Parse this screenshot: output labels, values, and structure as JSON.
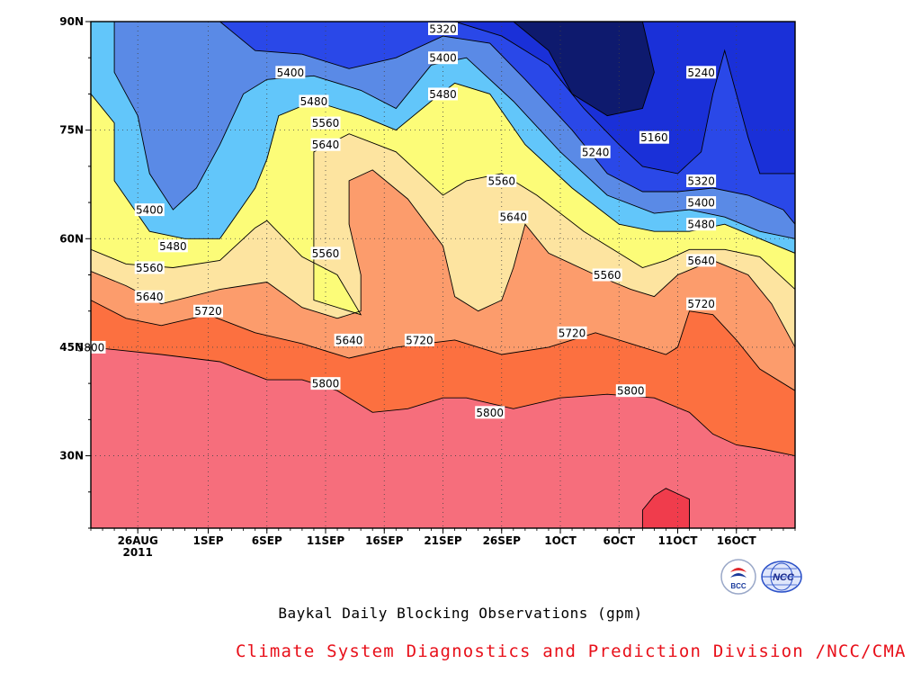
{
  "chart_data": {
    "type": "heatmap",
    "subtype": "filled-contour (Hovmoller)",
    "title": "Baykal Daily Blocking Observations (gpm)",
    "xlabel": "",
    "ylabel": "",
    "x_range": [
      "2011-08-22",
      "2011-10-21"
    ],
    "y_range": [
      20,
      90
    ],
    "x_ticks": [
      {
        "date": "2011-08-26",
        "label": "26AUG",
        "sublabel": "2011"
      },
      {
        "date": "2011-09-01",
        "label": "1SEP"
      },
      {
        "date": "2011-09-06",
        "label": "6SEP"
      },
      {
        "date": "2011-09-11",
        "label": "11SEP"
      },
      {
        "date": "2011-09-16",
        "label": "16SEP"
      },
      {
        "date": "2011-09-21",
        "label": "21SEP"
      },
      {
        "date": "2011-09-26",
        "label": "26SEP"
      },
      {
        "date": "2011-10-01",
        "label": "1OCT"
      },
      {
        "date": "2011-10-06",
        "label": "6OCT"
      },
      {
        "date": "2011-10-11",
        "label": "11OCT"
      },
      {
        "date": "2011-10-16",
        "label": "16OCT"
      }
    ],
    "y_ticks": [
      {
        "value": 30,
        "label": "30N"
      },
      {
        "value": 45,
        "label": "45N"
      },
      {
        "value": 60,
        "label": "60N"
      },
      {
        "value": 75,
        "label": "75N"
      },
      {
        "value": 90,
        "label": "90N"
      }
    ],
    "grid": "dotted",
    "contour_levels": [
      5160,
      5240,
      5320,
      5400,
      5480,
      5560,
      5640,
      5720,
      5800,
      5880
    ],
    "fill_colors": [
      "#0e1a6e",
      "#1a30d8",
      "#2a48e8",
      "#5a8ae6",
      "#62c6fa",
      "#fcfc78",
      "#fde4a0",
      "#fc9c6c",
      "#fc7040",
      "#f66e7c",
      "#f03c4c"
    ],
    "contour_labels": [
      {
        "text": "5320",
        "date": "2011-09-21",
        "lat": 89
      },
      {
        "text": "5400",
        "date": "2011-09-08",
        "lat": 83
      },
      {
        "text": "5400",
        "date": "2011-09-21",
        "lat": 85
      },
      {
        "text": "5480",
        "date": "2011-09-10",
        "lat": 79
      },
      {
        "text": "5480",
        "date": "2011-09-21",
        "lat": 80
      },
      {
        "text": "5560",
        "date": "2011-09-11",
        "lat": 76
      },
      {
        "text": "5640",
        "date": "2011-09-11",
        "lat": 73
      },
      {
        "text": "5400",
        "date": "2011-08-27",
        "lat": 64
      },
      {
        "text": "5480",
        "date": "2011-08-29",
        "lat": 59
      },
      {
        "text": "5560",
        "date": "2011-08-27",
        "lat": 56
      },
      {
        "text": "5560",
        "date": "2011-09-11",
        "lat": 58
      },
      {
        "text": "5640",
        "date": "2011-08-27",
        "lat": 52
      },
      {
        "text": "5720",
        "date": "2011-09-01",
        "lat": 50
      },
      {
        "text": "5640",
        "date": "2011-09-13",
        "lat": 46
      },
      {
        "text": "5720",
        "date": "2011-09-19",
        "lat": 46
      },
      {
        "text": "5800",
        "date": "2011-08-22",
        "lat": 45
      },
      {
        "text": "5800",
        "date": "2011-09-11",
        "lat": 40
      },
      {
        "text": "5800",
        "date": "2011-09-25",
        "lat": 36
      },
      {
        "text": "5560",
        "date": "2011-09-26",
        "lat": 68
      },
      {
        "text": "5640",
        "date": "2011-09-27",
        "lat": 63
      },
      {
        "text": "5240",
        "date": "2011-10-04",
        "lat": 72
      },
      {
        "text": "5160",
        "date": "2011-10-09",
        "lat": 74
      },
      {
        "text": "5240",
        "date": "2011-10-13",
        "lat": 83
      },
      {
        "text": "5320",
        "date": "2011-10-13",
        "lat": 68
      },
      {
        "text": "5400",
        "date": "2011-10-13",
        "lat": 65
      },
      {
        "text": "5480",
        "date": "2011-10-13",
        "lat": 62
      },
      {
        "text": "5640",
        "date": "2011-10-13",
        "lat": 57
      },
      {
        "text": "5720",
        "date": "2011-10-13",
        "lat": 51
      },
      {
        "text": "5560",
        "date": "2011-10-05",
        "lat": 55
      },
      {
        "text": "5720",
        "date": "2011-10-02",
        "lat": 47
      },
      {
        "text": "5800",
        "date": "2011-10-07",
        "lat": 39
      }
    ],
    "contours": [
      {
        "level": 5880,
        "closed": true,
        "points": [
          [
            "2011-10-08",
            20
          ],
          [
            "2011-10-08",
            22.5
          ],
          [
            "2011-10-09",
            24.5
          ],
          [
            "2011-10-10",
            25.5
          ],
          [
            "2011-10-12",
            24
          ],
          [
            "2011-10-12",
            22
          ],
          [
            "2011-10-12",
            20
          ]
        ]
      },
      {
        "level": 5800,
        "points": [
          [
            "2011-08-22",
            45
          ],
          [
            "2011-08-28",
            44
          ],
          [
            "2011-09-02",
            43
          ],
          [
            "2011-09-06",
            40.5
          ],
          [
            "2011-09-09",
            40.5
          ],
          [
            "2011-09-12",
            39
          ],
          [
            "2011-09-15",
            36
          ],
          [
            "2011-09-18",
            36.5
          ],
          [
            "2011-09-21",
            38
          ],
          [
            "2011-09-23",
            38
          ],
          [
            "2011-09-27",
            36.5
          ],
          [
            "2011-10-01",
            38
          ],
          [
            "2011-10-05",
            38.5
          ],
          [
            "2011-10-09",
            38
          ],
          [
            "2011-10-12",
            36
          ],
          [
            "2011-10-14",
            33
          ],
          [
            "2011-10-16",
            31.5
          ],
          [
            "2011-10-18",
            31
          ],
          [
            "2011-10-21",
            30
          ]
        ]
      },
      {
        "level": 5720,
        "points": [
          [
            "2011-08-22",
            51.5
          ],
          [
            "2011-08-25",
            49
          ],
          [
            "2011-08-28",
            48
          ],
          [
            "2011-09-01",
            49.5
          ],
          [
            "2011-09-05",
            47
          ],
          [
            "2011-09-09",
            45.5
          ],
          [
            "2011-09-13",
            43.5
          ],
          [
            "2011-09-17",
            45
          ],
          [
            "2011-09-22",
            46
          ],
          [
            "2011-09-26",
            44
          ],
          [
            "2011-09-30",
            45
          ],
          [
            "2011-10-04",
            47
          ],
          [
            "2011-10-07",
            45.5
          ],
          [
            "2011-10-10",
            44
          ],
          [
            "2011-10-11",
            45
          ],
          [
            "2011-10-12",
            50
          ],
          [
            "2011-10-14",
            49.5
          ],
          [
            "2011-10-16",
            46
          ],
          [
            "2011-10-18",
            42
          ],
          [
            "2011-10-21",
            39
          ]
        ]
      },
      {
        "level": 5640,
        "points": [
          [
            "2011-08-22",
            55.5
          ],
          [
            "2011-08-25",
            53.5
          ],
          [
            "2011-08-28",
            51
          ],
          [
            "2011-09-02",
            53
          ],
          [
            "2011-09-06",
            54
          ],
          [
            "2011-09-09",
            50.5
          ],
          [
            "2011-09-12",
            49
          ],
          [
            "2011-09-14",
            50
          ],
          [
            "2011-09-14",
            55
          ],
          [
            "2011-09-13",
            62
          ],
          [
            "2011-09-13",
            68
          ],
          [
            "2011-09-15",
            69.5
          ],
          [
            "2011-09-18",
            65.5
          ],
          [
            "2011-09-21",
            59
          ],
          [
            "2011-09-22",
            52
          ],
          [
            "2011-09-24",
            50
          ],
          [
            "2011-09-26",
            51.5
          ],
          [
            "2011-09-27",
            56
          ],
          [
            "2011-09-28",
            62
          ],
          [
            "2011-09-30",
            58
          ],
          [
            "2011-10-04",
            55
          ],
          [
            "2011-10-07",
            53
          ],
          [
            "2011-10-09",
            52
          ],
          [
            "2011-10-11",
            55
          ],
          [
            "2011-10-14",
            57
          ],
          [
            "2011-10-17",
            55
          ],
          [
            "2011-10-19",
            51
          ],
          [
            "2011-10-21",
            45
          ]
        ]
      },
      {
        "level": 5560,
        "points": [
          [
            "2011-08-22",
            58.5
          ],
          [
            "2011-08-25",
            56.5
          ],
          [
            "2011-08-29",
            56
          ],
          [
            "2011-09-02",
            57
          ],
          [
            "2011-09-05",
            61.5
          ],
          [
            "2011-09-06",
            62.5
          ],
          [
            "2011-09-09",
            57.5
          ],
          [
            "2011-09-12",
            55
          ],
          [
            "2011-09-14",
            49.5
          ],
          [
            "2011-09-10",
            51.5
          ],
          [
            "2011-09-10",
            62
          ],
          [
            "2011-09-10",
            72
          ],
          [
            "2011-09-13",
            74.5
          ],
          [
            "2011-09-17",
            72
          ],
          [
            "2011-09-21",
            66
          ],
          [
            "2011-09-23",
            68
          ],
          [
            "2011-09-26",
            69
          ],
          [
            "2011-09-29",
            66
          ],
          [
            "2011-10-03",
            61
          ],
          [
            "2011-10-06",
            58
          ],
          [
            "2011-10-08",
            56
          ],
          [
            "2011-10-10",
            57
          ],
          [
            "2011-10-12",
            58.5
          ],
          [
            "2011-10-15",
            58.5
          ],
          [
            "2011-10-18",
            57.5
          ],
          [
            "2011-10-21",
            53
          ]
        ]
      },
      {
        "level": 5480,
        "points": [
          [
            "2011-08-22",
            90
          ],
          [
            "2011-08-22",
            80
          ],
          [
            "2011-08-24",
            76
          ],
          [
            "2011-08-24",
            68
          ],
          [
            "2011-08-27",
            61
          ],
          [
            "2011-08-30",
            60
          ],
          [
            "2011-09-02",
            60
          ],
          [
            "2011-09-05",
            67
          ],
          [
            "2011-09-06",
            71
          ],
          [
            "2011-09-07",
            77
          ],
          [
            "2011-09-10",
            79
          ],
          [
            "2011-09-14",
            77
          ],
          [
            "2011-09-17",
            75
          ],
          [
            "2011-09-20",
            79
          ],
          [
            "2011-09-22",
            81.5
          ],
          [
            "2011-09-25",
            80
          ],
          [
            "2011-09-28",
            73
          ],
          [
            "2011-10-02",
            67
          ],
          [
            "2011-10-06",
            62
          ],
          [
            "2011-10-09",
            61
          ],
          [
            "2011-10-12",
            61
          ],
          [
            "2011-10-15",
            62
          ],
          [
            "2011-10-18",
            60
          ],
          [
            "2011-10-21",
            58
          ]
        ]
      },
      {
        "level": 5400,
        "points": [
          [
            "2011-08-24",
            90
          ],
          [
            "2011-08-24",
            83
          ],
          [
            "2011-08-26",
            77
          ],
          [
            "2011-08-27",
            69
          ],
          [
            "2011-08-29",
            64
          ],
          [
            "2011-08-31",
            67
          ],
          [
            "2011-09-02",
            73
          ],
          [
            "2011-09-04",
            80
          ],
          [
            "2011-09-06",
            82
          ],
          [
            "2011-09-10",
            82.5
          ],
          [
            "2011-09-14",
            80.5
          ],
          [
            "2011-09-17",
            78
          ],
          [
            "2011-09-20",
            84
          ],
          [
            "2011-09-23",
            85
          ],
          [
            "2011-09-27",
            79
          ],
          [
            "2011-10-01",
            72
          ],
          [
            "2011-10-05",
            66
          ],
          [
            "2011-10-09",
            63.5
          ],
          [
            "2011-10-12",
            64
          ],
          [
            "2011-10-15",
            63
          ],
          [
            "2011-10-18",
            61
          ],
          [
            "2011-10-21",
            60
          ]
        ]
      },
      {
        "level": 5320,
        "points": [
          [
            "2011-09-02",
            90
          ],
          [
            "2011-09-05",
            86
          ],
          [
            "2011-09-09",
            85.5
          ],
          [
            "2011-09-13",
            83.5
          ],
          [
            "2011-09-17",
            85
          ],
          [
            "2011-09-21",
            88
          ],
          [
            "2011-09-25",
            87
          ],
          [
            "2011-09-28",
            82
          ],
          [
            "2011-10-02",
            75
          ],
          [
            "2011-10-05",
            69
          ],
          [
            "2011-10-08",
            66.5
          ],
          [
            "2011-10-11",
            66.5
          ],
          [
            "2011-10-14",
            67
          ],
          [
            "2011-10-17",
            66
          ],
          [
            "2011-10-20",
            64
          ],
          [
            "2011-10-21",
            62
          ]
        ]
      },
      {
        "level": 5240,
        "points": [
          [
            "2011-09-22",
            90
          ],
          [
            "2011-09-26",
            88
          ],
          [
            "2011-09-30",
            84
          ],
          [
            "2011-10-03",
            78
          ],
          [
            "2011-10-06",
            73
          ],
          [
            "2011-10-08",
            70
          ],
          [
            "2011-10-11",
            69
          ],
          [
            "2011-10-13",
            72
          ],
          [
            "2011-10-14",
            80
          ],
          [
            "2011-10-15",
            86
          ],
          [
            "2011-10-17",
            74
          ],
          [
            "2011-10-18",
            69
          ],
          [
            "2011-10-21",
            69
          ]
        ]
      },
      {
        "level": 5160,
        "points": [
          [
            "2011-09-27",
            90
          ],
          [
            "2011-09-30",
            86
          ],
          [
            "2011-10-02",
            80
          ],
          [
            "2011-10-05",
            77
          ],
          [
            "2011-10-08",
            78
          ],
          [
            "2011-10-09",
            83
          ],
          [
            "2011-10-08",
            90
          ]
        ]
      }
    ]
  },
  "footer": {
    "title": "Baykal Daily Blocking Observations (gpm)",
    "credit": "Climate System Diagnostics and Prediction Division /NCC/CMA"
  },
  "logos": {
    "bcc": {
      "text": "BCC",
      "icon": "bcc-logo-icon",
      "color": "#1a3a9c"
    },
    "ncc": {
      "text": "NCC",
      "icon": "ncc-logo-icon",
      "color": "#2a50c8"
    }
  }
}
